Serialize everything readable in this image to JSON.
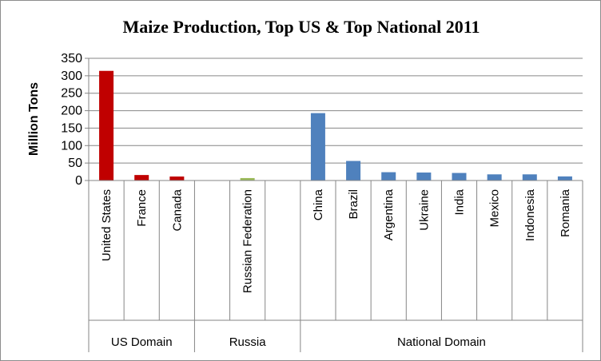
{
  "chart_data": {
    "type": "bar",
    "title": "Maize Production, Top US & Top National 2011",
    "xlabel": "",
    "ylabel": "Million  Tons",
    "ylim": [
      0,
      350
    ],
    "yticks": [
      "0",
      "50",
      "100",
      "150",
      "200",
      "250",
      "300",
      "350"
    ],
    "grid": true,
    "legend": "none",
    "categories": [
      "United States",
      "France",
      "Canada",
      "",
      "Russian Federation",
      "",
      "China",
      "Brazil",
      "Argentina",
      "Ukraine",
      "India",
      "Mexico",
      "Indonesia",
      "Romania"
    ],
    "values": [
      314,
      15.7,
      11.4,
      null,
      7,
      null,
      193,
      56,
      23.8,
      22.8,
      21.6,
      17.6,
      17.6,
      11.7
    ],
    "bar_colors": [
      "#c00000",
      "#c00000",
      "#c00000",
      "",
      "#9bbb59",
      "",
      "#4f81bd",
      "#4f81bd",
      "#4f81bd",
      "#4f81bd",
      "#4f81bd",
      "#4f81bd",
      "#4f81bd",
      "#4f81bd"
    ],
    "groups": [
      {
        "name": "US Domain",
        "start": 0,
        "count": 3
      },
      {
        "name": "Russia",
        "start": 3,
        "count": 3
      },
      {
        "name": "National Domain",
        "start": 6,
        "count": 8
      }
    ]
  }
}
